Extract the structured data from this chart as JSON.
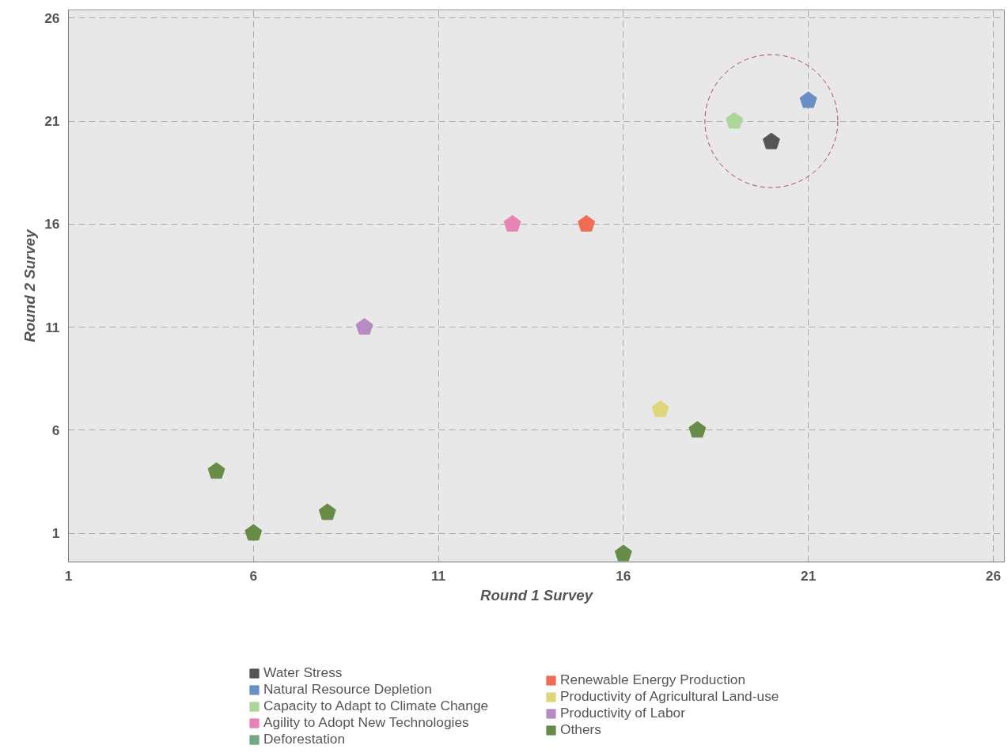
{
  "chart_data": {
    "type": "scatter",
    "xlabel": "Round 1 Survey",
    "ylabel": "Round 2 Survey",
    "xlim": [
      1,
      26.3
    ],
    "ylim": [
      -0.4,
      26.4
    ],
    "xticks": [
      1,
      6,
      11,
      16,
      21,
      26
    ],
    "yticks": [
      1,
      6,
      11,
      16,
      21,
      26
    ],
    "grid": true,
    "legend": "bottom",
    "series": [
      {
        "name": "Water Stress",
        "color": "#555555",
        "x": [
          20
        ],
        "values": [
          20
        ]
      },
      {
        "name": "Natural Resource Depletion",
        "color": "#6a8fc4",
        "x": [
          21
        ],
        "values": [
          22
        ]
      },
      {
        "name": "Capacity to Adapt to Climate Change",
        "color": "#add79a",
        "x": [
          19
        ],
        "values": [
          21
        ]
      },
      {
        "name": "Agility to Adopt New Technologies",
        "color": "#e784b6",
        "x": [
          13
        ],
        "values": [
          16
        ]
      },
      {
        "name": "Deforestation",
        "color": "#72a882"
      },
      {
        "name": "Renewable Energy Production",
        "color": "#f06c55",
        "x": [
          15
        ],
        "values": [
          16
        ]
      },
      {
        "name": "Productivity of Agricultural Land-use",
        "color": "#ddd77a",
        "x": [
          17
        ],
        "values": [
          7
        ]
      },
      {
        "name": "Productivity of Labor",
        "color": "#b88bc4",
        "x": [
          9
        ],
        "values": [
          11
        ]
      },
      {
        "name": "Others",
        "color": "#678c48",
        "x": [
          5,
          6,
          8,
          16,
          18
        ],
        "values": [
          4,
          1,
          2,
          0,
          6
        ]
      }
    ]
  }
}
